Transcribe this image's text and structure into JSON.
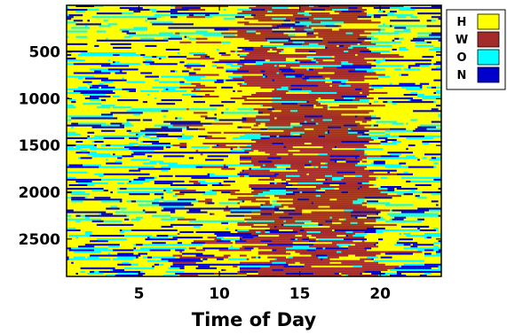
{
  "chart_data": {
    "type": "heatmap",
    "title": "",
    "xlabel": "Time of Day",
    "ylabel": "",
    "xlim": [
      0.5,
      23.8
    ],
    "ylim": [
      1,
      2900
    ],
    "y_inverted": true,
    "xticks": [
      5,
      10,
      15,
      20
    ],
    "yticks": [
      500,
      1000,
      1500,
      2000,
      2500
    ],
    "categories": [
      {
        "code": "H",
        "color": "#ffff00"
      },
      {
        "code": "W",
        "color": "#a52a2a"
      },
      {
        "code": "O",
        "color": "#00ffff"
      },
      {
        "code": "N",
        "color": "#0000cd"
      }
    ],
    "legend_position": "top-right, outside plot",
    "dominant_pattern": [
      {
        "from_hour": 0.5,
        "to_hour": 7,
        "dominant": "H",
        "secondary": [
          "O",
          "N"
        ]
      },
      {
        "from_hour": 7,
        "to_hour": 11,
        "dominant": "H",
        "secondary": [
          "O",
          "W",
          "N"
        ]
      },
      {
        "from_hour": 11,
        "to_hour": 19,
        "dominant": "W",
        "secondary": [
          "O",
          "H",
          "N"
        ]
      },
      {
        "from_hour": 19,
        "to_hour": 23.8,
        "dominant": "H",
        "secondary": [
          "O",
          "N"
        ]
      }
    ]
  }
}
